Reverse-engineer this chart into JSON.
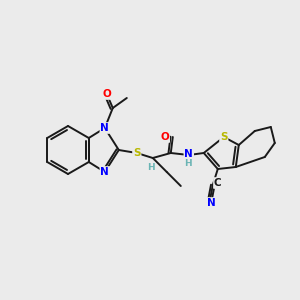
{
  "background_color": "#ebebeb",
  "bond_color": "#1a1a1a",
  "atom_colors": {
    "N": "#0000ff",
    "O": "#ff0000",
    "S": "#b8b800",
    "H": "#6ab4b4",
    "C": "#1a1a1a"
  },
  "figsize": [
    3.0,
    3.0
  ],
  "dpi": 100,
  "lw": 1.4
}
